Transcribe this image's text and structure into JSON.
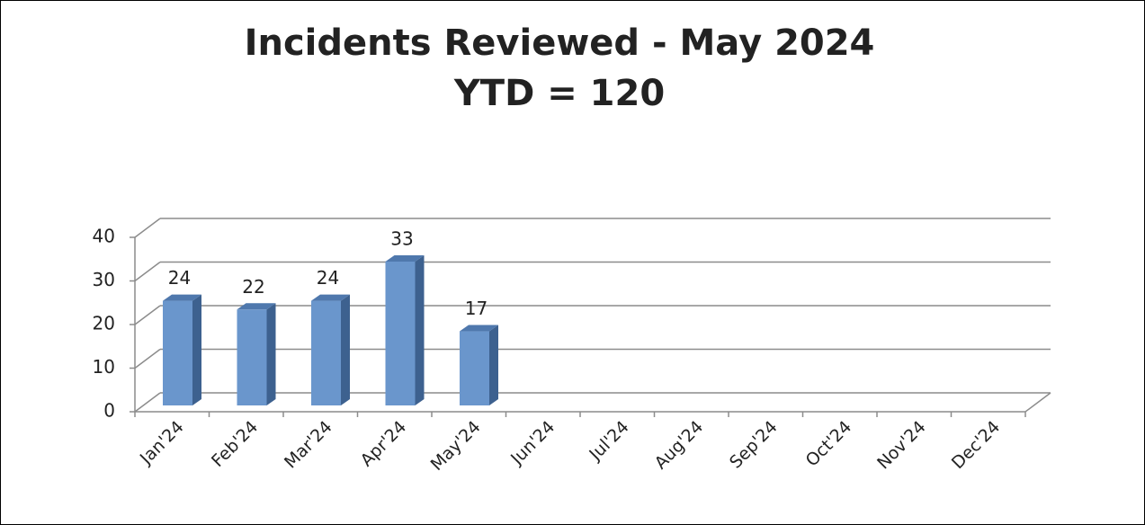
{
  "chart_data": {
    "type": "bar3d",
    "title": "Incidents Reviewed - May 2024",
    "subtitle": "YTD = 120",
    "categories": [
      "Jan'24",
      "Feb'24",
      "Mar'24",
      "Apr'24",
      "May'24",
      "Jun'24",
      "Jul'24",
      "Aug'24",
      "Sep'24",
      "Oct'24",
      "Nov'24",
      "Dec'24"
    ],
    "values": [
      24,
      22,
      24,
      33,
      17,
      null,
      null,
      null,
      null,
      null,
      null,
      null
    ],
    "color": "#6a96cc",
    "ylim": [
      0,
      40
    ],
    "yticks": [
      0,
      10,
      20,
      30,
      40
    ],
    "grid": true
  }
}
